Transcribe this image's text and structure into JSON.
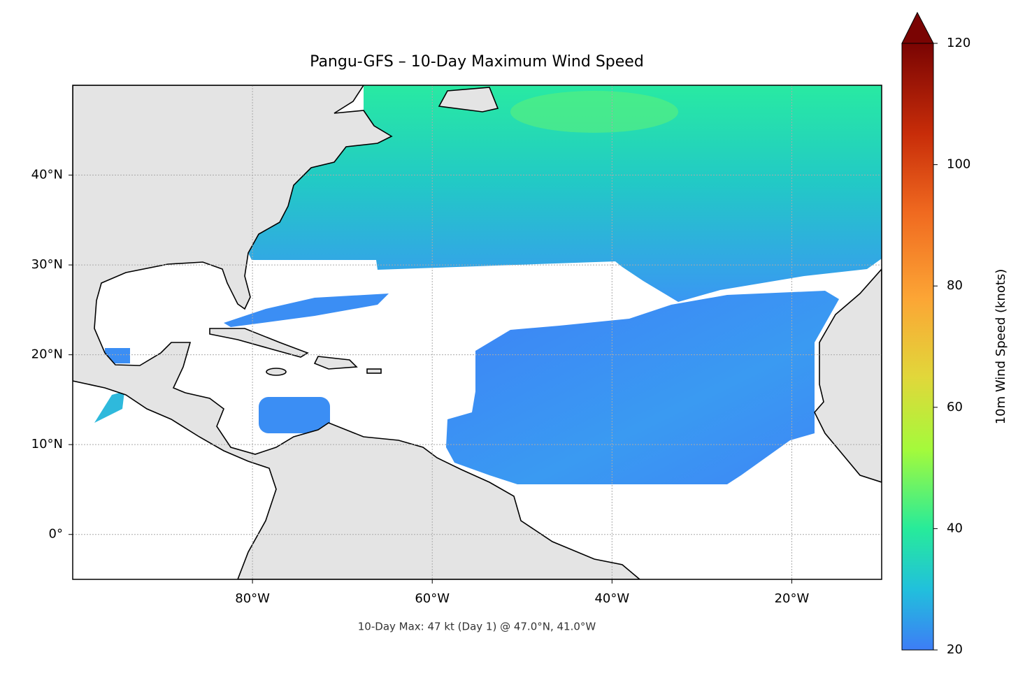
{
  "chart_data": {
    "type": "map",
    "title": "Pangu-GFS – 10-Day Maximum Wind Speed",
    "annotation": "10-Day Max: 47 kt (Day 1) @ 47.0°N, 41.0°W",
    "xlim": [
      -100,
      -10
    ],
    "xticks": [
      {
        "value": -80,
        "label": "80°W"
      },
      {
        "value": -60,
        "label": "60°W"
      },
      {
        "value": -40,
        "label": "40°W"
      },
      {
        "value": -20,
        "label": "20°W"
      }
    ],
    "ylim": [
      -5,
      50
    ],
    "yticks": [
      {
        "value": 0,
        "label": "0°"
      },
      {
        "value": 10,
        "label": "10°N"
      },
      {
        "value": 20,
        "label": "20°N"
      },
      {
        "value": 30,
        "label": "30°N"
      },
      {
        "value": 40,
        "label": "40°N"
      }
    ],
    "grid": true,
    "colorbar": {
      "label": "10m Wind Speed (knots)",
      "lim": [
        20,
        120
      ],
      "ticks": [
        20,
        40,
        60,
        80,
        100,
        120
      ]
    }
  }
}
